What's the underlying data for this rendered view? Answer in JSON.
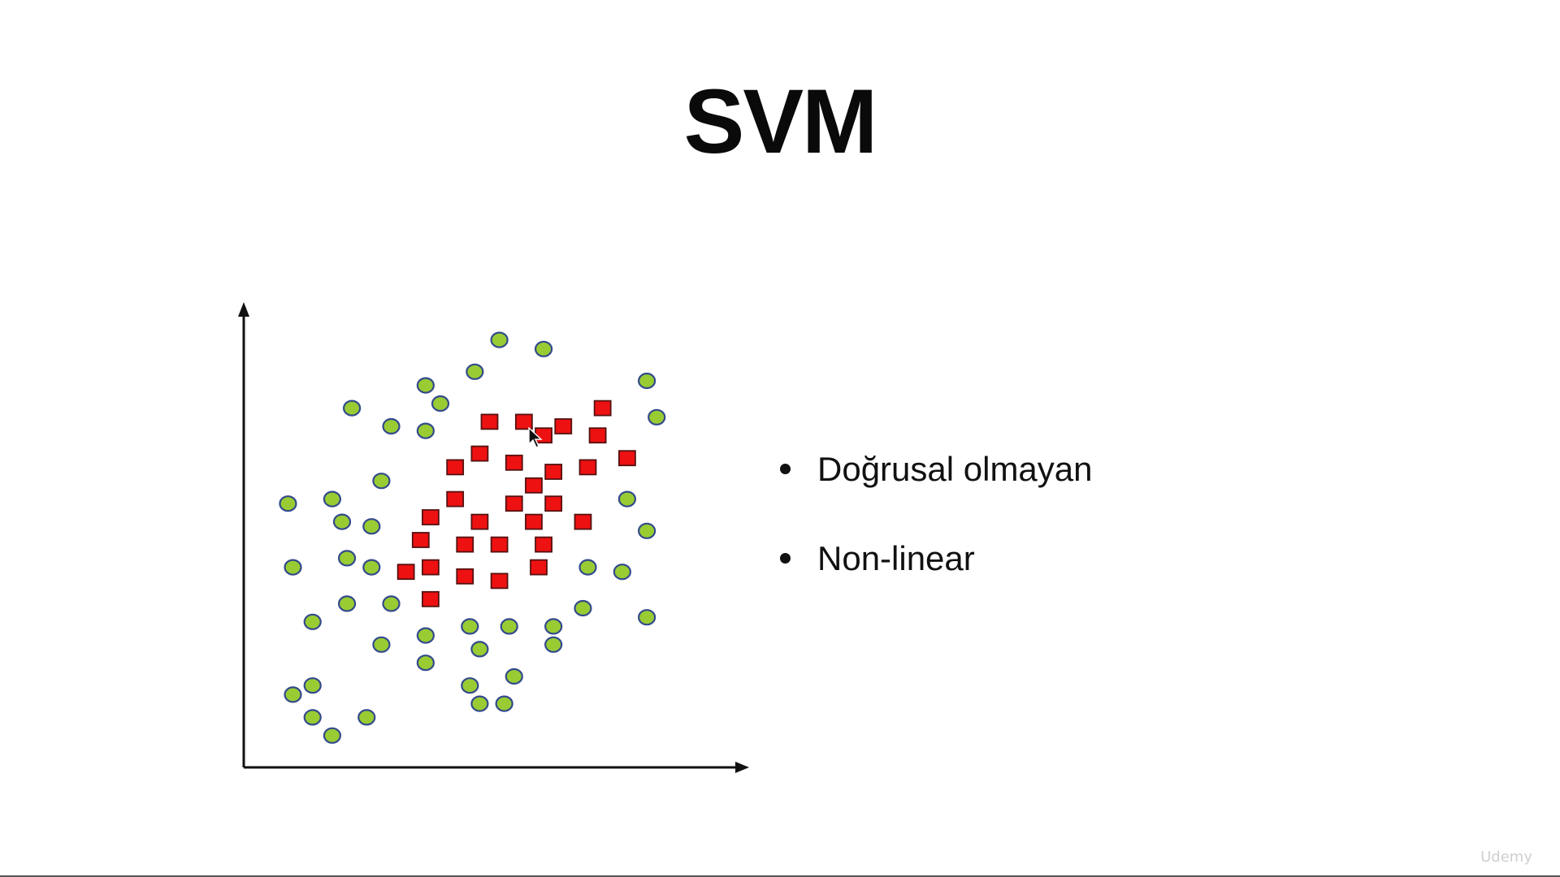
{
  "slide": {
    "title": "SVM",
    "bullets": [
      "Doğrusal olmayan",
      "Non-linear"
    ],
    "watermark": "Udemy"
  },
  "chart_data": {
    "type": "scatter",
    "title": "",
    "xlabel": "",
    "ylabel": "",
    "axes": "arrows, no ticks",
    "xlim": [
      0,
      100
    ],
    "ylim": [
      0,
      100
    ],
    "series": [
      {
        "marker": "circle",
        "color": "#99cc33",
        "edge_color": "#334a8c",
        "points": [
          [
            52,
            94
          ],
          [
            61,
            92
          ],
          [
            47,
            87
          ],
          [
            82,
            85
          ],
          [
            37,
            84
          ],
          [
            40,
            80
          ],
          [
            22,
            79
          ],
          [
            84,
            77
          ],
          [
            30,
            75
          ],
          [
            37,
            74
          ],
          [
            28,
            63
          ],
          [
            18,
            59
          ],
          [
            9,
            58
          ],
          [
            78,
            59
          ],
          [
            20,
            54
          ],
          [
            26,
            53
          ],
          [
            82,
            52
          ],
          [
            21,
            46
          ],
          [
            26,
            44
          ],
          [
            10,
            44
          ],
          [
            70,
            44
          ],
          [
            77,
            43
          ],
          [
            21,
            36
          ],
          [
            30,
            36
          ],
          [
            69,
            35
          ],
          [
            82,
            33
          ],
          [
            14,
            32
          ],
          [
            63,
            31
          ],
          [
            46,
            31
          ],
          [
            54,
            31
          ],
          [
            37,
            29
          ],
          [
            28,
            27
          ],
          [
            48,
            26
          ],
          [
            63,
            27
          ],
          [
            37,
            23
          ],
          [
            55,
            20
          ],
          [
            46,
            18
          ],
          [
            14,
            18
          ],
          [
            10,
            16
          ],
          [
            14,
            11
          ],
          [
            25,
            11
          ],
          [
            48,
            14
          ],
          [
            53,
            14
          ],
          [
            18,
            7
          ]
        ]
      },
      {
        "marker": "square",
        "color": "#ee1111",
        "edge_color": "#551111",
        "points": [
          [
            50,
            76
          ],
          [
            57,
            76
          ],
          [
            65,
            75
          ],
          [
            73,
            79
          ],
          [
            61,
            73
          ],
          [
            72,
            73
          ],
          [
            48,
            69
          ],
          [
            55,
            67
          ],
          [
            43,
            66
          ],
          [
            78,
            68
          ],
          [
            63,
            65
          ],
          [
            70,
            66
          ],
          [
            59,
            62
          ],
          [
            43,
            59
          ],
          [
            55,
            58
          ],
          [
            63,
            58
          ],
          [
            38,
            55
          ],
          [
            48,
            54
          ],
          [
            59,
            54
          ],
          [
            69,
            54
          ],
          [
            36,
            50
          ],
          [
            45,
            49
          ],
          [
            52,
            49
          ],
          [
            61,
            49
          ],
          [
            33,
            43
          ],
          [
            38,
            44
          ],
          [
            45,
            42
          ],
          [
            52,
            41
          ],
          [
            60,
            44
          ],
          [
            38,
            37
          ]
        ]
      }
    ]
  }
}
